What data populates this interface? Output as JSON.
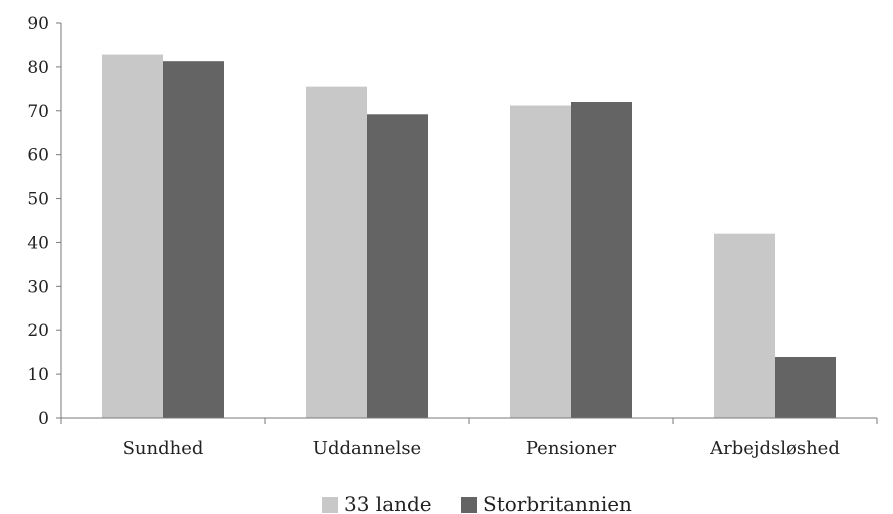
{
  "chart_data": {
    "type": "bar",
    "categories": [
      "Sundhed",
      "Uddannelse",
      "Pensioner",
      "Arbejdsløshed"
    ],
    "series": [
      {
        "name": "33 lande",
        "values": [
          82.8,
          75.5,
          71.2,
          42.0
        ]
      },
      {
        "name": "Storbritannien",
        "values": [
          81.3,
          69.2,
          72.0,
          13.9
        ]
      }
    ],
    "ylim": [
      0,
      90
    ],
    "yticks": [
      0,
      10,
      20,
      30,
      40,
      50,
      60,
      70,
      80,
      90
    ],
    "title": "",
    "xlabel": "",
    "ylabel": "",
    "grid": false,
    "legend_position": "bottom-center",
    "colors": [
      "#c8c8c8",
      "#646464"
    ]
  }
}
